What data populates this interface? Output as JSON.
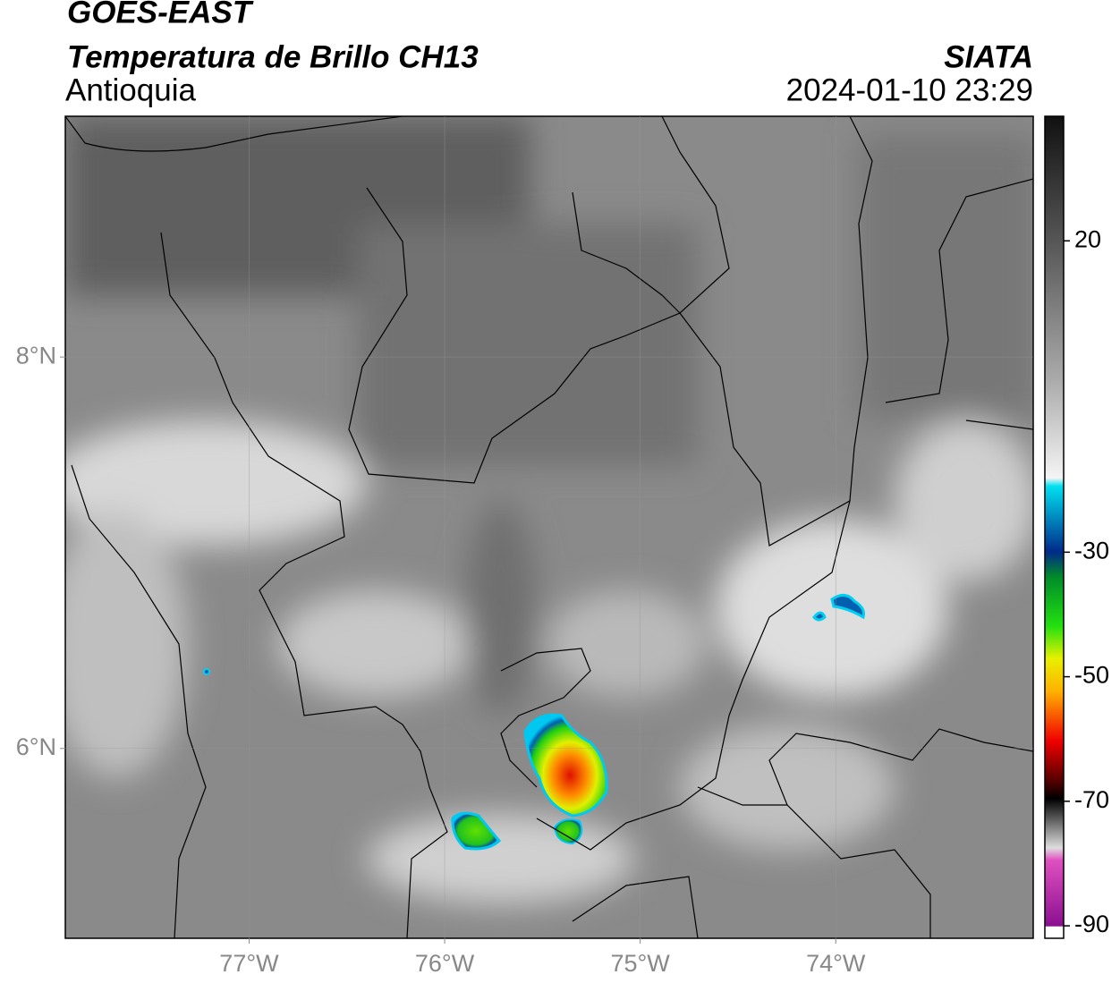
{
  "header": {
    "source": "GOES-EAST",
    "title": "Temperatura de Brillo CH13",
    "region": "Antioquia",
    "org": "SIATA",
    "timestamp": "2024-01-10 23:29"
  },
  "map": {
    "xlim": [
      -77.94,
      -72.99
    ],
    "ylim": [
      5.03,
      9.23
    ],
    "xticks": [
      {
        "value": -77,
        "label": "77°W"
      },
      {
        "value": -76,
        "label": "76°W"
      },
      {
        "value": -75,
        "label": "75°W"
      },
      {
        "value": -74,
        "label": "74°W"
      }
    ],
    "yticks": [
      {
        "value": 6,
        "label": "6°N"
      },
      {
        "value": 8,
        "label": "8°N"
      }
    ],
    "grid": true
  },
  "colorbar": {
    "vlim": [
      -92,
      40
    ],
    "ticks": [
      20,
      -30,
      -50,
      -70,
      -90
    ]
  }
}
